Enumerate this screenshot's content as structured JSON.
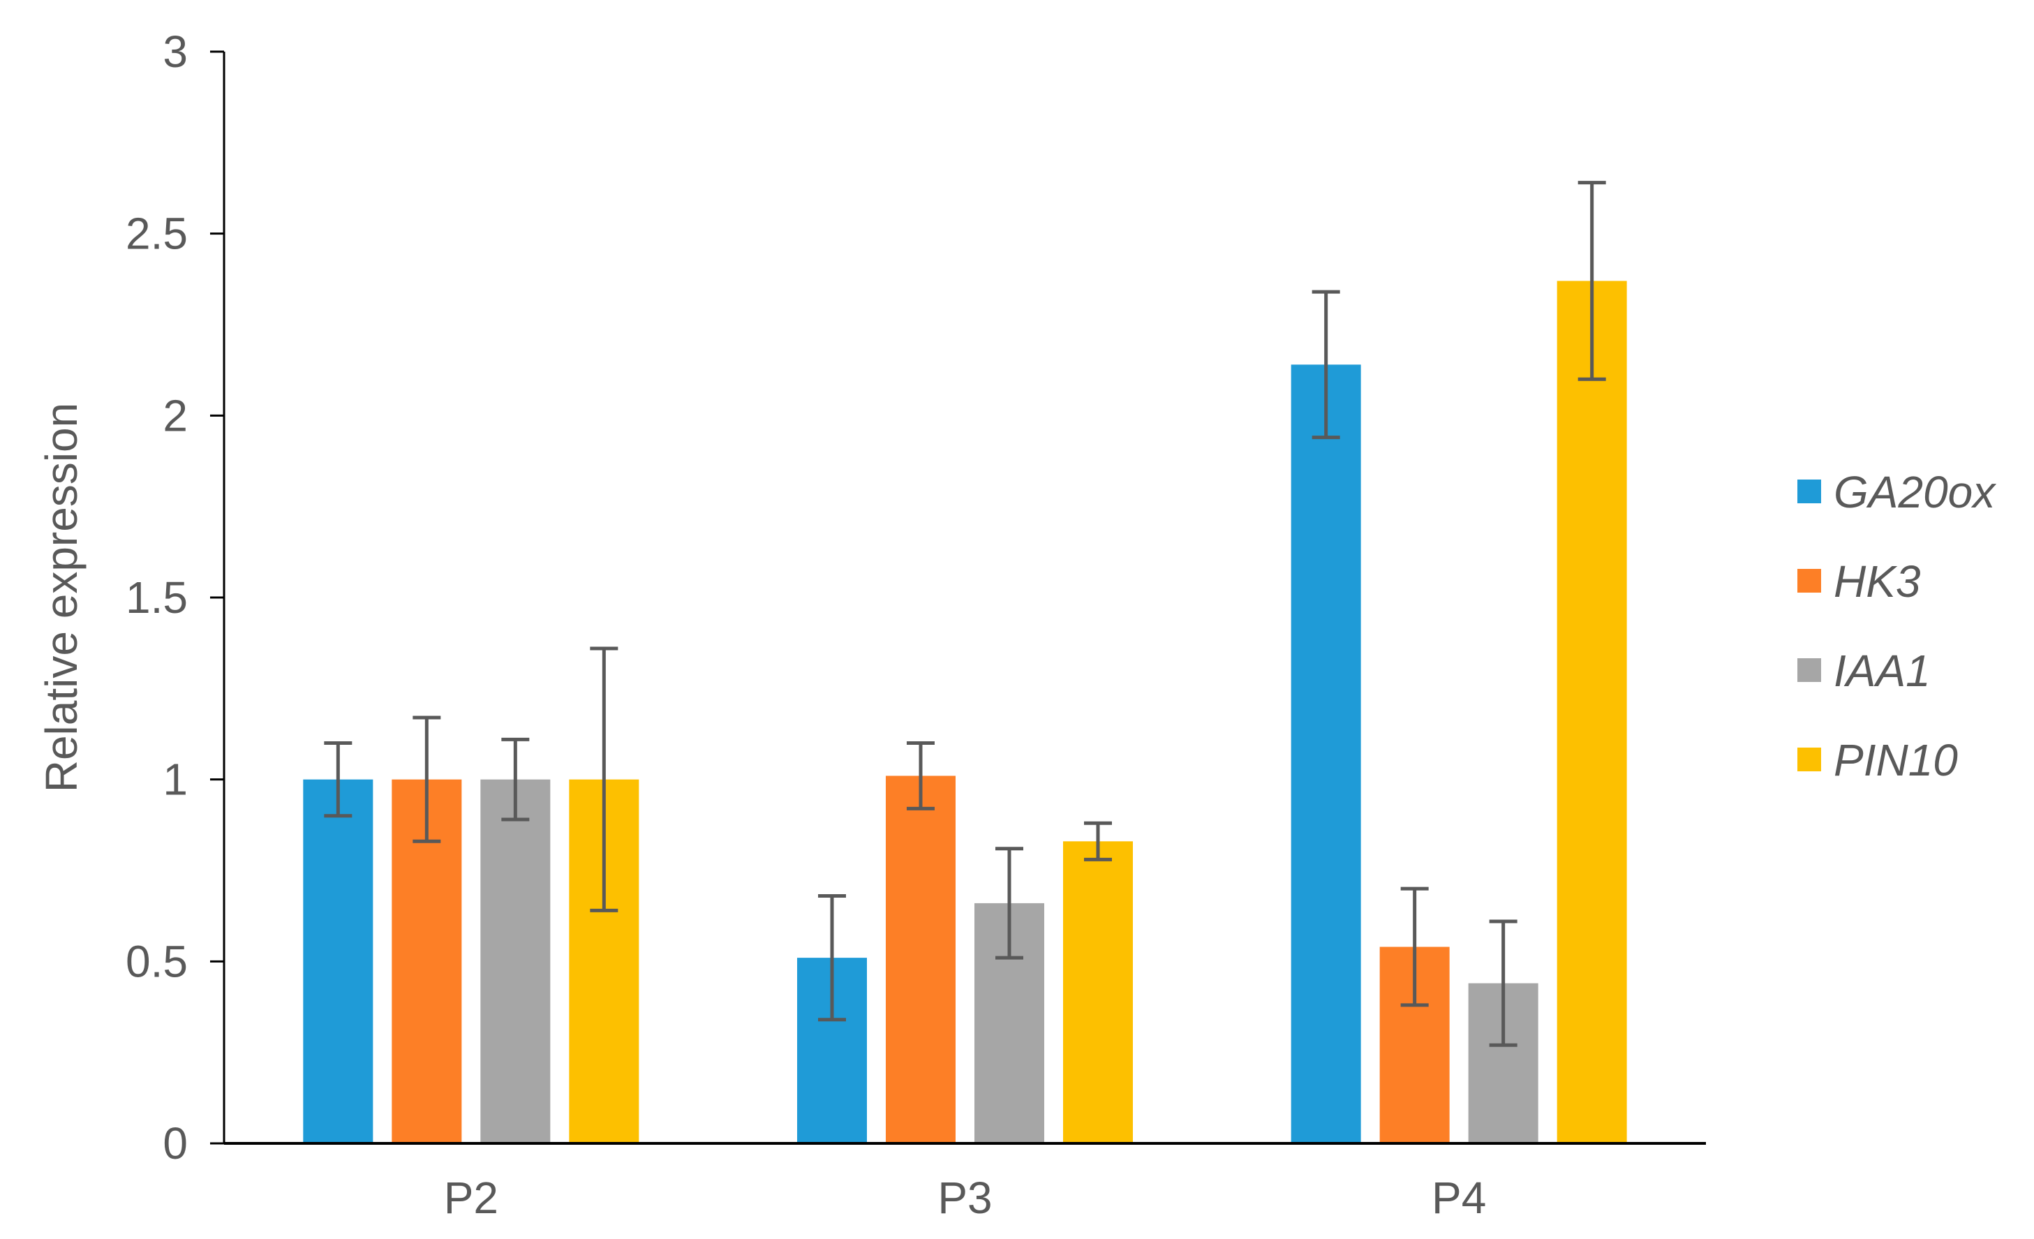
{
  "chart_data": {
    "type": "bar",
    "title": "",
    "xlabel": "",
    "ylabel": "Relative expression",
    "ylim": [
      0,
      3
    ],
    "yticks": [
      "0",
      "0.5",
      "1",
      "1.5",
      "2",
      "2.5",
      "3"
    ],
    "grid": false,
    "legend_position": "right",
    "categories": [
      "P2",
      "P3",
      "P4"
    ],
    "series": [
      {
        "name": "GA20ox",
        "color": "#1F9BD7",
        "values": [
          1.0,
          0.51,
          2.14
        ],
        "errors": [
          0.1,
          0.17,
          0.2
        ]
      },
      {
        "name": "HK3",
        "color": "#FD7F26",
        "values": [
          1.0,
          1.01,
          0.54
        ],
        "errors": [
          0.17,
          0.09,
          0.16
        ]
      },
      {
        "name": "IAA1",
        "color": "#A6A6A6",
        "values": [
          1.0,
          0.66,
          0.44
        ],
        "errors": [
          0.11,
          0.15,
          0.17
        ]
      },
      {
        "name": "PIN10",
        "color": "#FDC000",
        "values": [
          1.0,
          0.83,
          2.37
        ],
        "errors": [
          0.36,
          0.05,
          0.27
        ]
      }
    ]
  }
}
